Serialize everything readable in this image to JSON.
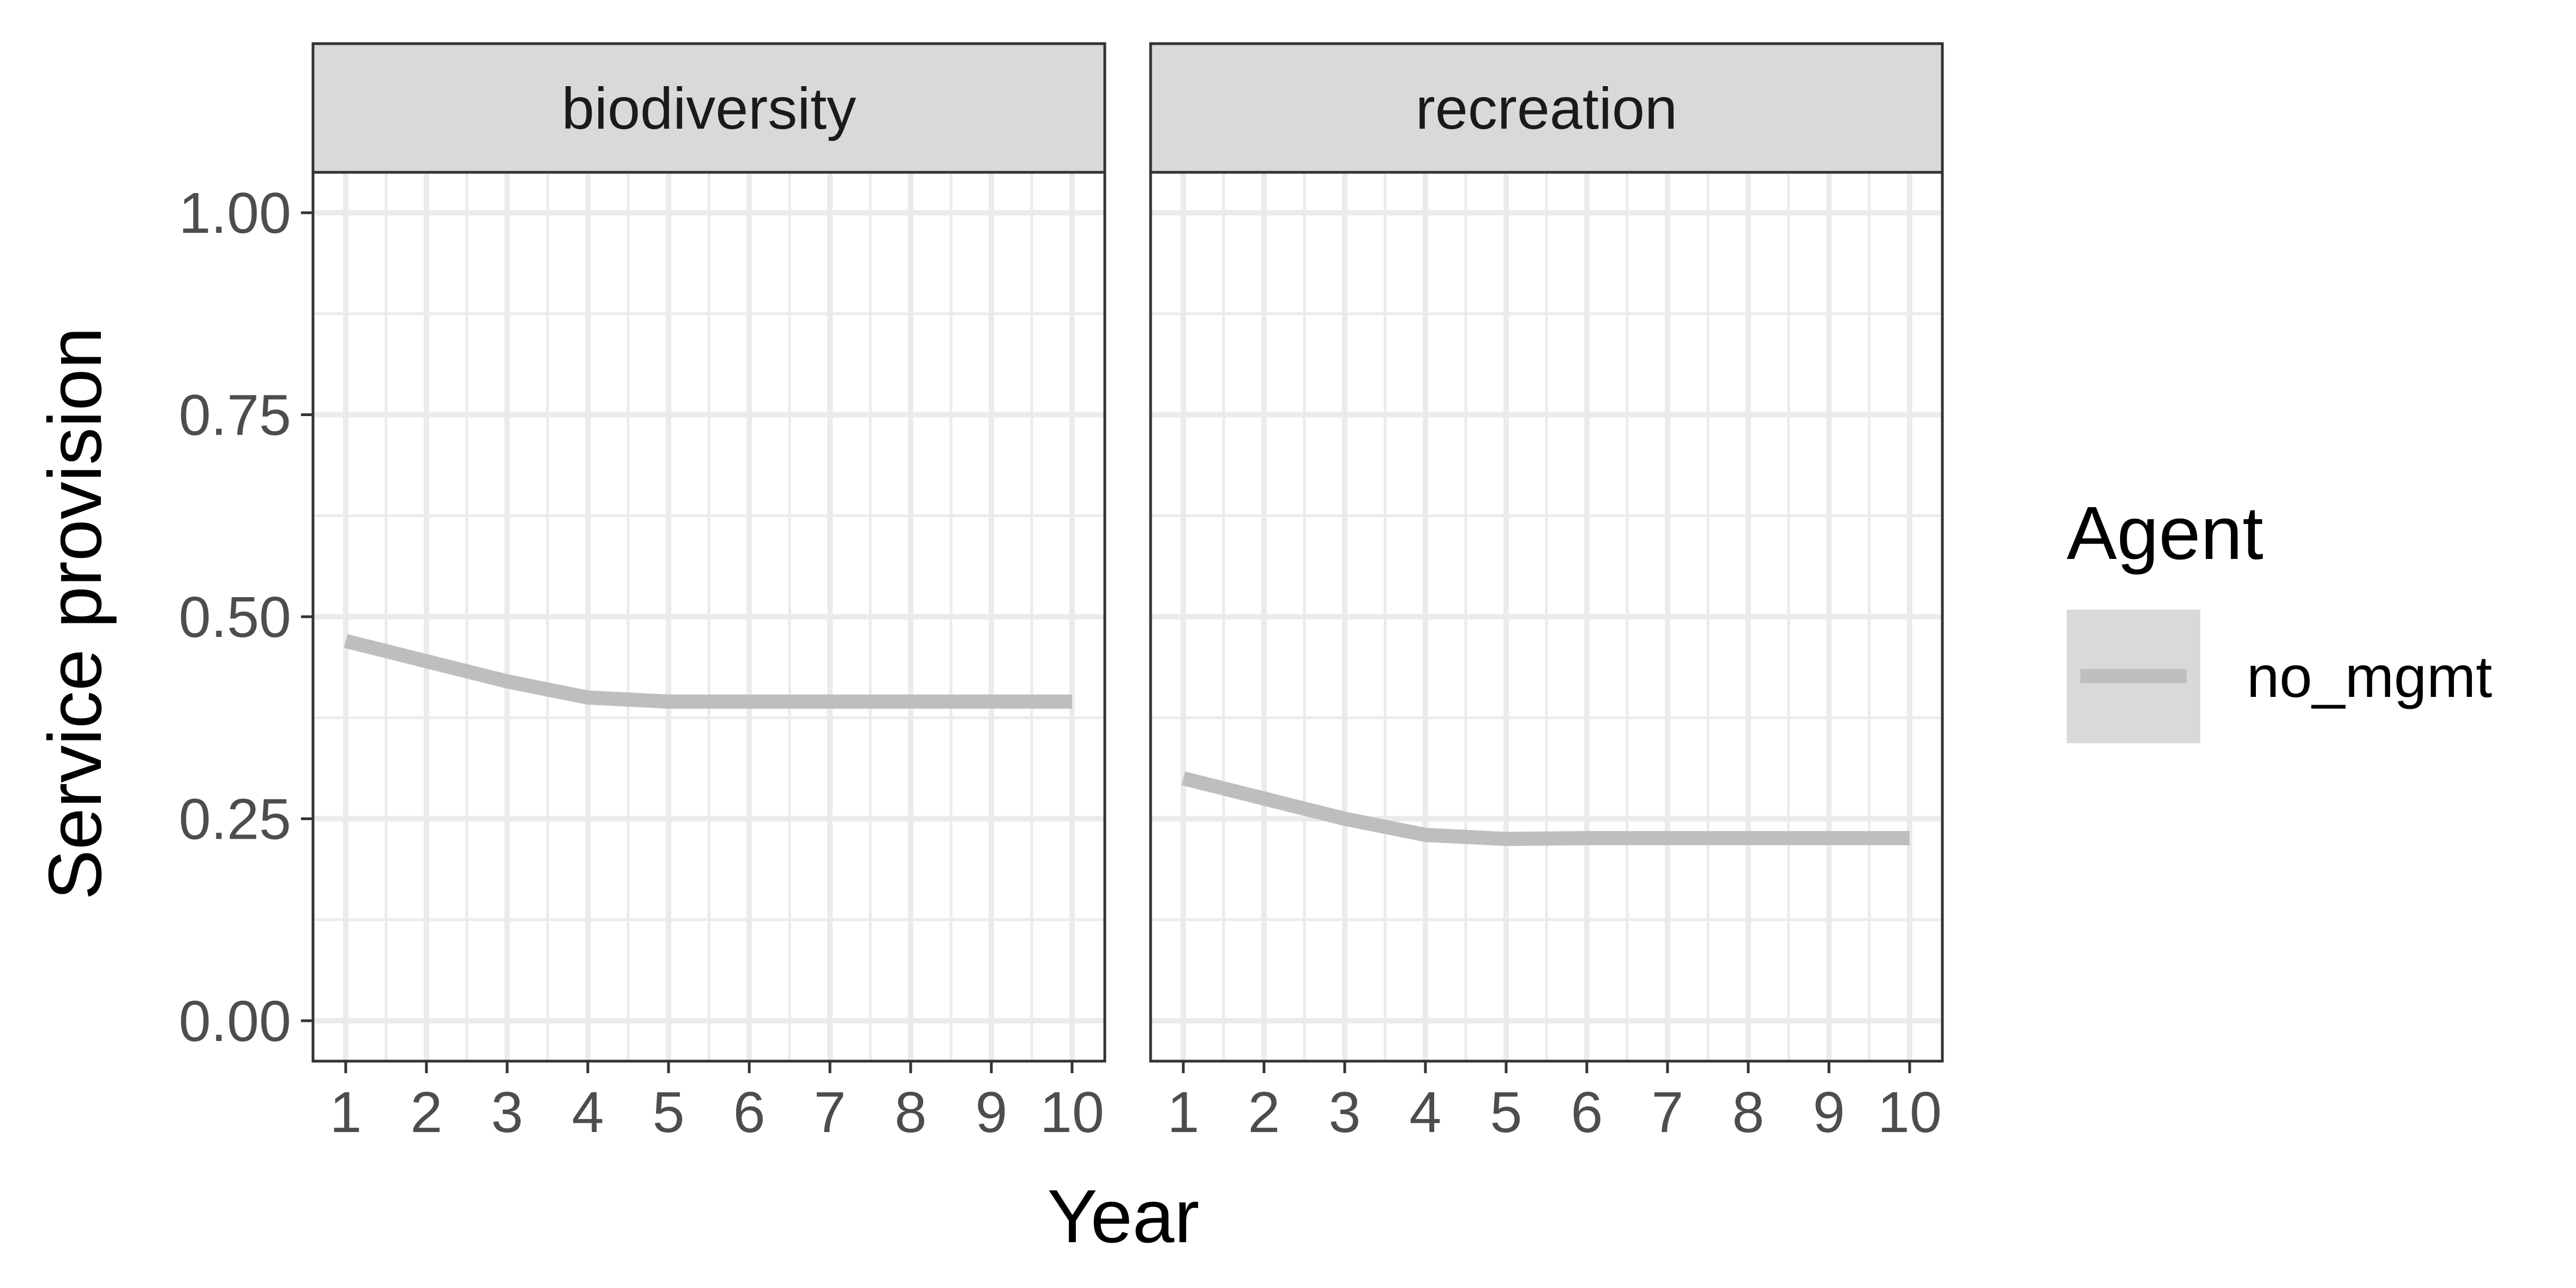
{
  "chart_data": {
    "type": "line",
    "facet_by": "service",
    "xlabel": "Year",
    "ylabel": "Service provision",
    "x": [
      1,
      2,
      3,
      4,
      5,
      6,
      7,
      8,
      9,
      10
    ],
    "x_ticks": [
      "1",
      "2",
      "3",
      "4",
      "5",
      "6",
      "7",
      "8",
      "9",
      "10"
    ],
    "xlim": [
      1,
      10
    ],
    "ylim": [
      -0.05,
      1.05
    ],
    "y_ticks": [
      "0.00",
      "0.25",
      "0.50",
      "0.75",
      "1.00"
    ],
    "y_tick_values": [
      0,
      0.25,
      0.5,
      0.75,
      1.0
    ],
    "grid": true,
    "legend": {
      "title": "Agent",
      "position": "right",
      "entries": [
        "no_mgmt"
      ]
    },
    "series_color": "#bebebe",
    "panels": [
      {
        "title": "biodiversity",
        "series": [
          {
            "name": "no_mgmt",
            "values": [
              0.47,
              0.445,
              0.42,
              0.4,
              0.395,
              0.395,
              0.395,
              0.395,
              0.395,
              0.395
            ]
          }
        ]
      },
      {
        "title": "recreation",
        "series": [
          {
            "name": "no_mgmt",
            "values": [
              0.3,
              0.275,
              0.25,
              0.23,
              0.225,
              0.226,
              0.226,
              0.226,
              0.226,
              0.226
            ]
          }
        ]
      }
    ]
  }
}
